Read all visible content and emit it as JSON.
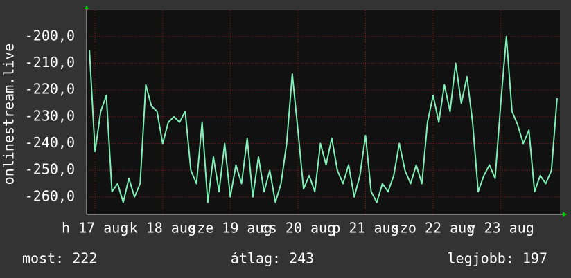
{
  "chart_data": {
    "type": "line",
    "ylabel": "onlinestream.live",
    "x": [
      -2,
      0,
      2,
      4,
      6,
      8,
      10,
      12,
      14,
      16,
      18,
      20,
      22,
      24,
      26,
      28,
      30,
      32,
      34,
      36,
      38,
      40,
      42,
      44,
      46,
      48,
      50,
      52,
      54,
      56,
      58,
      60,
      62,
      64,
      66,
      68,
      70,
      72,
      74,
      76,
      78,
      80,
      82,
      84,
      86,
      88,
      90,
      92,
      94,
      96,
      98,
      100,
      102,
      104,
      106,
      108,
      110,
      112,
      114,
      116,
      118,
      120,
      122,
      124,
      126,
      128,
      130,
      132,
      134,
      136,
      138,
      140,
      142,
      144,
      146,
      148,
      150,
      152,
      154,
      156,
      158,
      160,
      162,
      164
    ],
    "series": [
      {
        "color": "#80f0b8",
        "values": [
          -205,
          -243,
          -228,
          -222,
          -258,
          -255,
          -262,
          -253,
          -260,
          -255,
          -218,
          -226,
          -228,
          -240,
          -232,
          -230,
          -232,
          -228,
          -250,
          -255,
          -232,
          -262,
          -245,
          -258,
          -240,
          -260,
          -248,
          -255,
          -238,
          -260,
          -245,
          -258,
          -250,
          -262,
          -255,
          -240,
          -214,
          -235,
          -257,
          -252,
          -258,
          -240,
          -248,
          -238,
          -250,
          -255,
          -248,
          -260,
          -252,
          -237,
          -258,
          -262,
          -255,
          -258,
          -252,
          -240,
          -250,
          -255,
          -248,
          -255,
          -232,
          -222,
          -232,
          -218,
          -228,
          -210,
          -225,
          -215,
          -232,
          -258,
          -252,
          -248,
          -253,
          -225,
          -200,
          -228,
          -233,
          -240,
          -235,
          -258,
          -252,
          -255,
          -250,
          -223
        ]
      }
    ],
    "xlim": [
      -3,
      165
    ],
    "xticks": [
      {
        "value": 0,
        "label": "h 17 aug"
      },
      {
        "value": 24,
        "label": "k 18 aug"
      },
      {
        "value": 48,
        "label": "sze 19 aug"
      },
      {
        "value": 72,
        "label": "cs 20 aug"
      },
      {
        "value": 96,
        "label": "p 21 aug"
      },
      {
        "value": 120,
        "label": "szo 22 aug"
      },
      {
        "value": 144,
        "label": "v 23 aug"
      }
    ],
    "ylim": [
      -266.5,
      -190.2
    ],
    "yticks": [
      {
        "value": -260,
        "label": "-260,0"
      },
      {
        "value": -250,
        "label": "-250,0"
      },
      {
        "value": -240,
        "label": "-240,0"
      },
      {
        "value": -230,
        "label": "-230,0"
      },
      {
        "value": -220,
        "label": "-220,0"
      },
      {
        "value": -210,
        "label": "-210,0"
      },
      {
        "value": -200,
        "label": "-200,0"
      }
    ],
    "grid": true,
    "annotations": [
      "most: 222",
      "átlag: 243",
      "legjobb: 197"
    ]
  }
}
